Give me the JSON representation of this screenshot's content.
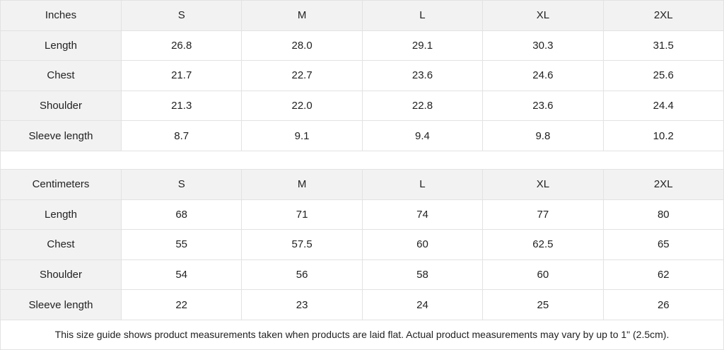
{
  "tables": [
    {
      "unit": "Inches",
      "sizes": [
        "S",
        "M",
        "L",
        "XL",
        "2XL"
      ],
      "rows": [
        {
          "label": "Length",
          "values": [
            "26.8",
            "28.0",
            "29.1",
            "30.3",
            "31.5"
          ]
        },
        {
          "label": "Chest",
          "values": [
            "21.7",
            "22.7",
            "23.6",
            "24.6",
            "25.6"
          ]
        },
        {
          "label": "Shoulder",
          "values": [
            "21.3",
            "22.0",
            "22.8",
            "23.6",
            "24.4"
          ]
        },
        {
          "label": "Sleeve length",
          "values": [
            "8.7",
            "9.1",
            "9.4",
            "9.8",
            "10.2"
          ]
        }
      ]
    },
    {
      "unit": "Centimeters",
      "sizes": [
        "S",
        "M",
        "L",
        "XL",
        "2XL"
      ],
      "rows": [
        {
          "label": "Length",
          "values": [
            "68",
            "71",
            "74",
            "77",
            "80"
          ]
        },
        {
          "label": "Chest",
          "values": [
            "55",
            "57.5",
            "60",
            "62.5",
            "65"
          ]
        },
        {
          "label": "Shoulder",
          "values": [
            "54",
            "56",
            "58",
            "60",
            "62"
          ]
        },
        {
          "label": "Sleeve length",
          "values": [
            "22",
            "23",
            "24",
            "25",
            "26"
          ]
        }
      ]
    }
  ],
  "footnote": "This size guide shows product measurements taken when products are laid flat.  Actual product measurements may vary by up to 1\" (2.5cm)."
}
